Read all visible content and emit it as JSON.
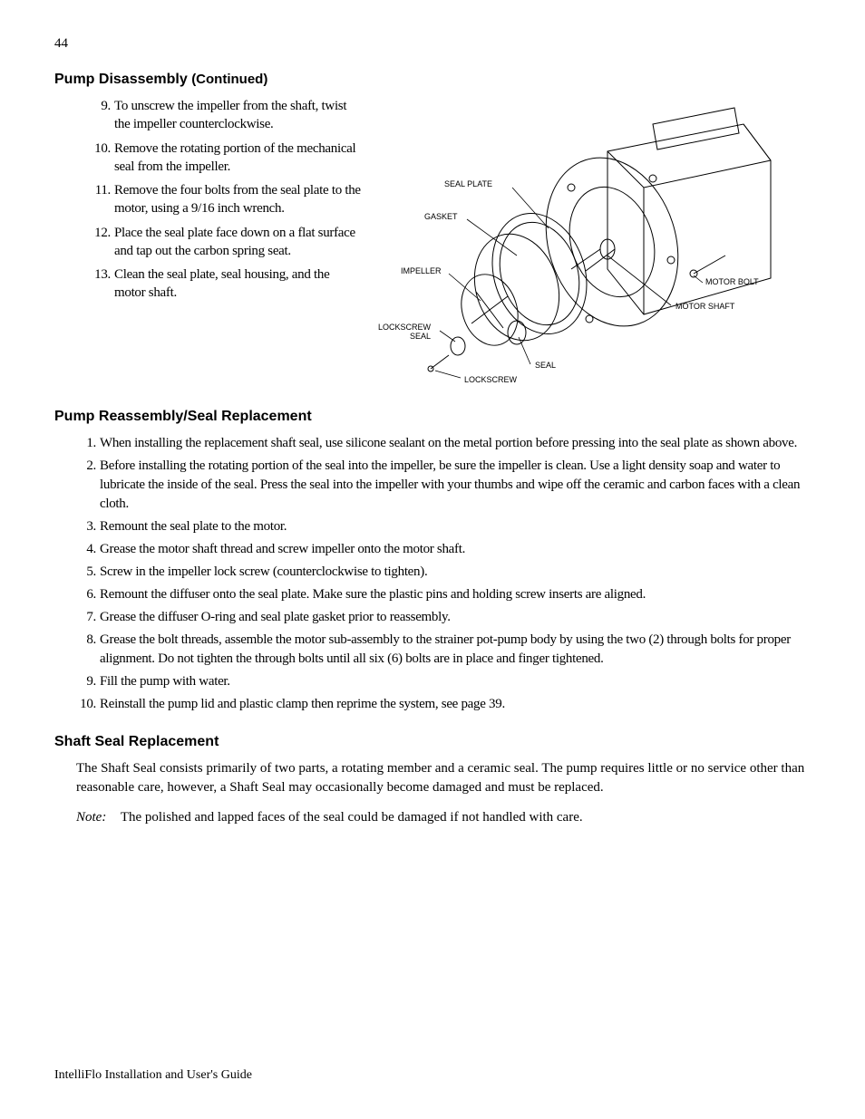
{
  "page_number": "44",
  "sections": {
    "disassembly": {
      "heading": "Pump Disassembly",
      "continued": "(Continued)",
      "start_num": 9,
      "items": [
        "To unscrew the impeller from the shaft, twist the impeller counterclockwise.",
        "Remove the rotating portion of the mechanical seal from the impeller.",
        "Remove the four bolts from the seal plate to the motor, using a 9/16 inch wrench.",
        "Place the seal plate face down on a flat surface and tap out the carbon spring seat.",
        "Clean the seal plate, seal housing, and the motor shaft."
      ]
    },
    "reassembly": {
      "heading": "Pump Reassembly/Seal Replacement",
      "items": [
        "When installing the replacement shaft seal, use silicone sealant on the metal portion before pressing into the seal plate as shown above.",
        "Before installing the rotating portion of the seal into the impeller, be sure the impeller is clean. Use a light density soap and water to lubricate the inside of the seal. Press the seal into the impeller with your thumbs and wipe off the ceramic and carbon faces with a clean cloth.",
        "Remount the seal plate to the motor.",
        "Grease the motor shaft thread and screw impeller onto the motor shaft.",
        "Screw in the impeller lock screw (counterclockwise to tighten).",
        "Remount the diffuser onto the seal plate. Make sure the plastic pins and holding screw inserts are aligned.",
        "Grease the diffuser O-ring and seal plate gasket prior to reassembly.",
        "Grease the bolt threads, assemble the motor sub-assembly to the strainer pot-pump body by using the two (2) through bolts for proper alignment. Do not tighten the through bolts until all six (6) bolts are in place and finger tightened.",
        "Fill the pump with water.",
        "Reinstall the pump lid and plastic clamp then reprime the system, see page 39."
      ]
    },
    "shaft_seal": {
      "heading": "Shaft Seal Replacement",
      "body": "The Shaft Seal consists primarily of two parts, a rotating member and a ceramic seal. The pump requires little or no service other than reasonable care, however, a Shaft Seal may occasionally become damaged and must be replaced.",
      "note_label": "Note:",
      "note_body": "The polished and lapped faces of the seal could be damaged if not handled with care."
    }
  },
  "figure": {
    "labels": {
      "seal_plate": "SEAL PLATE",
      "gasket": "GASKET",
      "impeller": "IMPELLER",
      "lockscrew_seal_l1": "LOCKSCREW",
      "lockscrew_seal_l2": "SEAL",
      "lockscrew": "LOCKSCREW",
      "seal": "SEAL",
      "motor_bolt": "MOTOR BOLT",
      "motor_shaft": "MOTOR SHAFT"
    }
  },
  "footer": "IntelliFlo Installation and User's Guide"
}
